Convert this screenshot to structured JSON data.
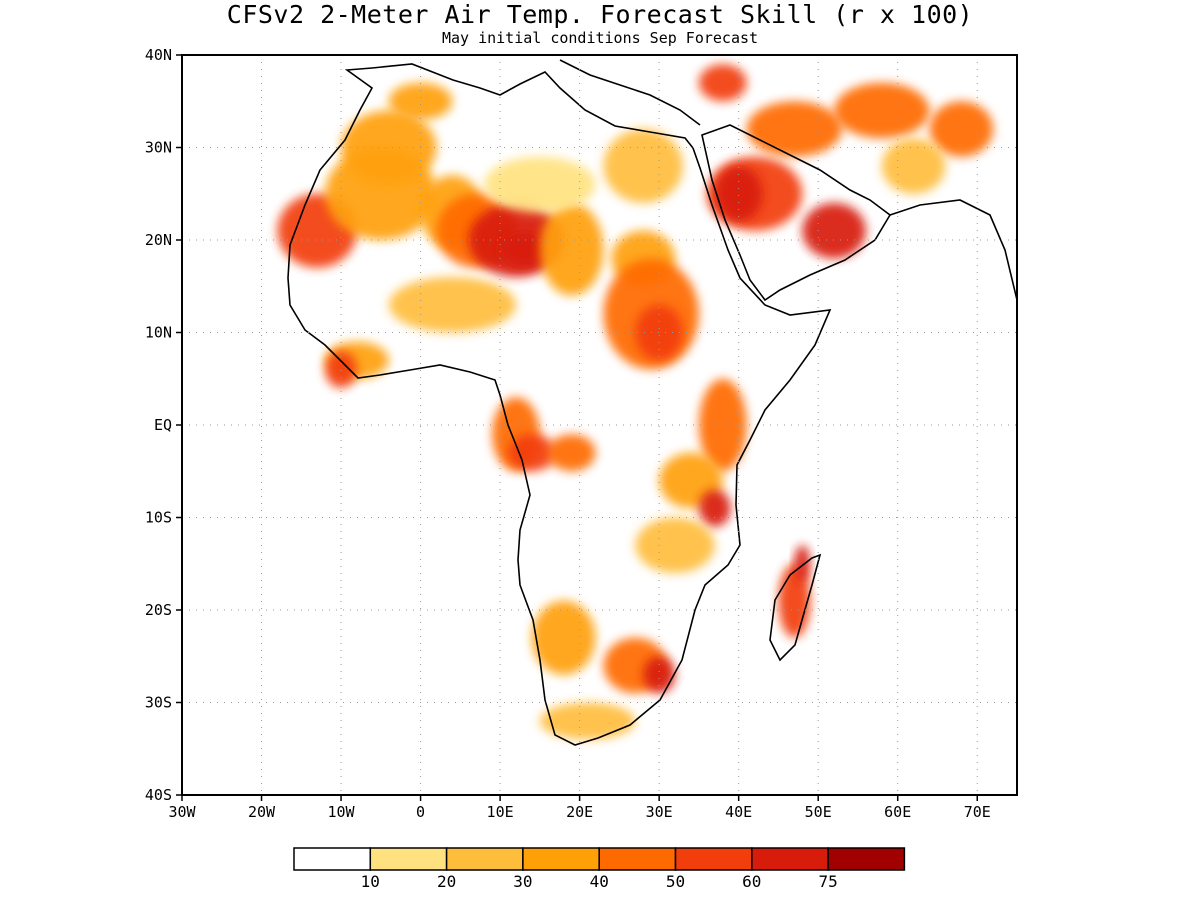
{
  "title": "CFSv2 2-Meter Air Temp. Forecast Skill (r x 100)",
  "subtitle": "May initial conditions  Sep Forecast",
  "axes": {
    "lat_labels": [
      "40N",
      "30N",
      "20N",
      "10N",
      "EQ",
      "10S",
      "20S",
      "30S",
      "40S"
    ],
    "lon_labels": [
      "30W",
      "20W",
      "10W",
      "0",
      "10E",
      "20E",
      "30E",
      "40E",
      "50E",
      "60E",
      "70E"
    ],
    "lon_range": [
      -30,
      75
    ],
    "lat_range": [
      -40,
      40
    ],
    "grid": "dotted"
  },
  "colorbar": {
    "labels": [
      "10",
      "20",
      "30",
      "40",
      "50",
      "60",
      "75"
    ],
    "colors": [
      "#ffffff",
      "#ffe27f",
      "#ffbd3c",
      "#ffa007",
      "#ff6a00",
      "#f23d0c",
      "#d81c0c",
      "#a00000"
    ]
  },
  "chart_data": {
    "type": "heatmap",
    "title": "CFSv2 2-Meter Air Temp. Forecast Skill (r x 100)",
    "subtitle": "May initial conditions  Sep Forecast",
    "xlim": [
      -30,
      75
    ],
    "ylim": [
      -40,
      40
    ],
    "levels": [
      10,
      20,
      30,
      40,
      50,
      60,
      75
    ],
    "blobs": [
      {
        "lon": -13,
        "lat": 21,
        "rx": 5,
        "ry": 4,
        "value": 55
      },
      {
        "lon": -5,
        "lat": 25,
        "rx": 7,
        "ry": 5,
        "value": 35
      },
      {
        "lon": 4,
        "lat": 23,
        "rx": 4,
        "ry": 4,
        "value": 30
      },
      {
        "lon": 7,
        "lat": 21,
        "rx": 5,
        "ry": 4,
        "value": 45
      },
      {
        "lon": 12,
        "lat": 20,
        "rx": 6,
        "ry": 4,
        "value": 62
      },
      {
        "lon": 13,
        "lat": 19,
        "rx": 3,
        "ry": 2,
        "value": 70
      },
      {
        "lon": 19,
        "lat": 19,
        "rx": 4,
        "ry": 5,
        "value": 30
      },
      {
        "lon": 4,
        "lat": 13,
        "rx": 8,
        "ry": 3,
        "value": 22
      },
      {
        "lon": -4,
        "lat": 30,
        "rx": 6,
        "ry": 4,
        "value": 30
      },
      {
        "lon": 0,
        "lat": 35,
        "rx": 4,
        "ry": 2,
        "value": 30
      },
      {
        "lon": 15,
        "lat": 26,
        "rx": 7,
        "ry": 3,
        "value": 18
      },
      {
        "lon": 28,
        "lat": 28,
        "rx": 5,
        "ry": 4,
        "value": 22
      },
      {
        "lon": 28,
        "lat": 18,
        "rx": 4,
        "ry": 3,
        "value": 32
      },
      {
        "lon": 29,
        "lat": 12,
        "rx": 6,
        "ry": 6,
        "value": 40
      },
      {
        "lon": 30,
        "lat": 10,
        "rx": 3,
        "ry": 3,
        "value": 55
      },
      {
        "lon": -8,
        "lat": 7,
        "rx": 4,
        "ry": 2,
        "value": 35
      },
      {
        "lon": -10,
        "lat": 6,
        "rx": 2,
        "ry": 2,
        "value": 55
      },
      {
        "lon": 12,
        "lat": -1,
        "rx": 3,
        "ry": 4,
        "value": 45
      },
      {
        "lon": 14,
        "lat": -3,
        "rx": 3,
        "ry": 2,
        "value": 55
      },
      {
        "lon": 19,
        "lat": -3,
        "rx": 3,
        "ry": 2,
        "value": 40
      },
      {
        "lon": 38,
        "lat": 0,
        "rx": 3,
        "ry": 5,
        "value": 45
      },
      {
        "lon": 34,
        "lat": -6,
        "rx": 4,
        "ry": 3,
        "value": 30
      },
      {
        "lon": 37,
        "lat": -9,
        "rx": 2,
        "ry": 2,
        "value": 65
      },
      {
        "lon": 32,
        "lat": -13,
        "rx": 5,
        "ry": 3,
        "value": 20
      },
      {
        "lon": 47,
        "lat": -19,
        "rx": 2,
        "ry": 4,
        "value": 55
      },
      {
        "lon": 48,
        "lat": -15,
        "rx": 1,
        "ry": 2,
        "value": 65
      },
      {
        "lon": 18,
        "lat": -23,
        "rx": 4,
        "ry": 4,
        "value": 30
      },
      {
        "lon": 27,
        "lat": -26,
        "rx": 4,
        "ry": 3,
        "value": 48
      },
      {
        "lon": 30,
        "lat": -27,
        "rx": 2,
        "ry": 2,
        "value": 60
      },
      {
        "lon": 21,
        "lat": -32,
        "rx": 6,
        "ry": 2,
        "value": 22
      },
      {
        "lon": 42,
        "lat": 25,
        "rx": 6,
        "ry": 4,
        "value": 58
      },
      {
        "lon": 40,
        "lat": 25,
        "rx": 3,
        "ry": 3,
        "value": 70
      },
      {
        "lon": 52,
        "lat": 21,
        "rx": 4,
        "ry": 3,
        "value": 62
      },
      {
        "lon": 47,
        "lat": 32,
        "rx": 6,
        "ry": 3,
        "value": 45
      },
      {
        "lon": 58,
        "lat": 34,
        "rx": 6,
        "ry": 3,
        "value": 42
      },
      {
        "lon": 68,
        "lat": 32,
        "rx": 4,
        "ry": 3,
        "value": 48
      },
      {
        "lon": 62,
        "lat": 28,
        "rx": 4,
        "ry": 3,
        "value": 25
      },
      {
        "lon": 38,
        "lat": 37,
        "rx": 3,
        "ry": 2,
        "value": 50
      }
    ]
  }
}
